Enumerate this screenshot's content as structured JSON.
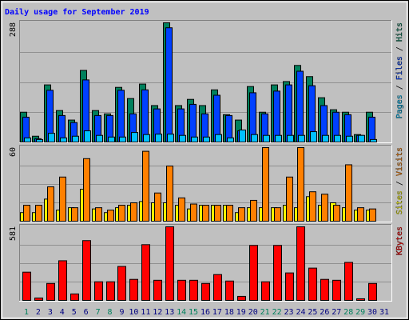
{
  "chart_data": [
    {
      "type": "bar",
      "title": "Daily usage for September 2019",
      "title_color": "#0000ff",
      "ylim": [
        0,
        288
      ],
      "yticks": [
        288
      ],
      "separator": "/",
      "series": [
        {
          "name": "Hits",
          "color": "#00805c",
          "values": [
            72,
            14,
            138,
            76,
            53,
            173,
            76,
            68,
            132,
            105,
            140,
            88,
            288,
            88,
            103,
            88,
            126,
            66,
            53,
            134,
            72,
            138,
            146,
            185,
            158,
            107,
            78,
            72,
            18,
            72,
            0
          ]
        },
        {
          "name": "Files",
          "color": "#0040ff",
          "values": [
            60,
            8,
            125,
            64,
            47,
            150,
            64,
            64,
            125,
            68,
            126,
            80,
            276,
            80,
            91,
            68,
            113,
            64,
            27,
            119,
            68,
            123,
            138,
            171,
            136,
            88,
            72,
            66,
            16,
            60,
            0
          ]
        },
        {
          "name": "Pages",
          "color": "#00c0ff",
          "values": [
            10,
            6,
            21,
            10,
            14,
            27,
            16,
            12,
            12,
            23,
            18,
            19,
            19,
            16,
            12,
            12,
            18,
            10,
            29,
            18,
            16,
            16,
            16,
            16,
            25,
            16,
            16,
            14,
            16,
            6,
            0
          ]
        }
      ]
    },
    {
      "type": "bar",
      "ylim": [
        0,
        60
      ],
      "yticks": [
        60
      ],
      "separator": "/",
      "series": [
        {
          "name": "Visits",
          "color": "#ff8000",
          "values": [
            13,
            13,
            28,
            36,
            11,
            51,
            11,
            9,
            13,
            15,
            57,
            23,
            45,
            19,
            14,
            13,
            13,
            13,
            11,
            17,
            60,
            11,
            36,
            60,
            24,
            22,
            13,
            46,
            11,
            10,
            0
          ]
        },
        {
          "name": "Sites",
          "color": "#ffff00",
          "values": [
            7,
            7,
            18,
            9,
            11,
            26,
            10,
            7,
            11,
            13,
            16,
            15,
            15,
            13,
            10,
            13,
            13,
            13,
            7,
            11,
            11,
            11,
            13,
            11,
            20,
            13,
            15,
            11,
            9,
            9,
            0
          ]
        }
      ]
    },
    {
      "type": "bar",
      "ylim": [
        0,
        581
      ],
      "yticks": [
        581
      ],
      "series": [
        {
          "name": "KBytes",
          "color": "#ff0000",
          "values": [
            223,
            19,
            134,
            313,
            51,
            472,
            147,
            147,
            268,
            166,
            440,
            159,
            581,
            159,
            159,
            134,
            204,
            153,
            32,
            434,
            147,
            434,
            217,
            581,
            255,
            166,
            159,
            300,
            13,
            134,
            0
          ]
        }
      ],
      "categories": [
        "1",
        "2",
        "3",
        "4",
        "5",
        "6",
        "7",
        "8",
        "9",
        "10",
        "11",
        "12",
        "13",
        "14",
        "15",
        "16",
        "17",
        "18",
        "19",
        "20",
        "21",
        "22",
        "23",
        "24",
        "25",
        "26",
        "27",
        "28",
        "29",
        "30",
        "31"
      ],
      "category_colors": [
        "#00805c",
        "#000080",
        "#000080",
        "#000080",
        "#000080",
        "#000080",
        "#00805c",
        "#00805c",
        "#000080",
        "#000080",
        "#000080",
        "#000080",
        "#000080",
        "#00805c",
        "#00805c",
        "#000080",
        "#000080",
        "#000080",
        "#000080",
        "#000080",
        "#00805c",
        "#00805c",
        "#000080",
        "#000080",
        "#000080",
        "#000080",
        "#000080",
        "#00805c",
        "#00805c",
        "#000080",
        "#000080"
      ]
    }
  ]
}
